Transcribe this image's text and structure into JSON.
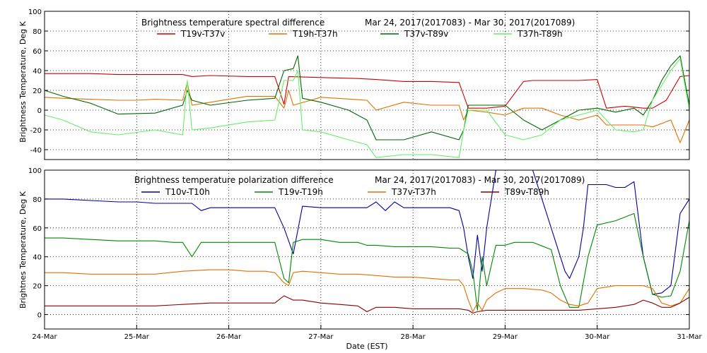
{
  "chart_data": [
    {
      "type": "line",
      "title": "Brightness temperature spectral difference",
      "date_range": "Mar 24, 2017(2017083) - Mar 30, 2017(2017089)",
      "ylabel": "Brightness Temperature, Deg K",
      "xlim": [
        0,
        7
      ],
      "ylim": [
        -50,
        100
      ],
      "yticks": [
        -40,
        -20,
        0,
        20,
        40,
        60,
        80,
        100
      ],
      "grid": true,
      "legend_position": "top",
      "series": [
        {
          "name": "T19v-T37v",
          "color": "#cc0000",
          "x": [
            0,
            0.2,
            0.5,
            0.8,
            1.2,
            1.5,
            1.6,
            1.8,
            2.2,
            2.5,
            2.6,
            2.65,
            3.0,
            3.4,
            3.6,
            3.9,
            4.2,
            4.5,
            4.55,
            4.6,
            4.8,
            5.0,
            5.2,
            5.3,
            5.35,
            5.6,
            5.8,
            6.0,
            6.1,
            6.3,
            6.5,
            6.6,
            6.75,
            6.9,
            7.0
          ],
          "y": [
            37,
            37,
            37,
            36,
            36,
            36,
            34,
            35,
            34,
            34,
            6,
            34,
            33,
            32,
            31,
            29,
            29,
            28,
            15,
            2,
            2,
            4,
            29,
            30,
            30,
            30,
            30,
            31,
            2,
            4,
            2,
            2,
            10,
            34,
            35
          ]
        },
        {
          "name": "T19h-T37h",
          "color": "#e07000",
          "x": [
            0,
            0.2,
            0.5,
            0.8,
            1.0,
            1.2,
            1.5,
            1.55,
            1.6,
            1.8,
            2.2,
            2.5,
            2.6,
            2.65,
            2.7,
            3.0,
            3.5,
            3.6,
            3.9,
            4.2,
            4.5,
            4.55,
            4.6,
            4.8,
            5.0,
            5.2,
            5.4,
            5.6,
            5.8,
            6.0,
            6.1,
            6.4,
            6.5,
            6.6,
            6.8,
            6.9,
            7.0
          ],
          "y": [
            13,
            12,
            11,
            10,
            10,
            11,
            10,
            28,
            5,
            8,
            14,
            14,
            2,
            20,
            5,
            13,
            10,
            0,
            8,
            5,
            5,
            -10,
            0,
            -2,
            -5,
            2,
            2,
            -5,
            -10,
            -5,
            -15,
            -15,
            -15,
            -17,
            -10,
            -33,
            -10
          ]
        },
        {
          "name": "T37v-T89v",
          "color": "#006600",
          "x": [
            0,
            0.2,
            0.5,
            0.8,
            1.2,
            1.5,
            1.55,
            1.6,
            1.8,
            2.2,
            2.5,
            2.6,
            2.7,
            2.75,
            2.8,
            3.0,
            3.3,
            3.5,
            3.6,
            3.9,
            4.2,
            4.5,
            4.55,
            4.6,
            4.8,
            5.0,
            5.2,
            5.4,
            5.6,
            5.8,
            6.0,
            6.2,
            6.4,
            6.5,
            6.6,
            6.7,
            6.8,
            6.9,
            7.0
          ],
          "y": [
            20,
            14,
            7,
            -4,
            -3,
            5,
            20,
            10,
            5,
            10,
            12,
            40,
            42,
            55,
            12,
            8,
            0,
            -10,
            -30,
            -30,
            -22,
            -30,
            -20,
            5,
            5,
            5,
            -10,
            -20,
            -10,
            0,
            2,
            -2,
            2,
            -5,
            10,
            30,
            45,
            55,
            5
          ]
        },
        {
          "name": "T37h-T89h",
          "color": "#66ee66",
          "x": [
            0,
            0.2,
            0.5,
            0.8,
            1.2,
            1.5,
            1.55,
            1.6,
            1.8,
            2.2,
            2.5,
            2.6,
            2.7,
            2.75,
            2.8,
            3.0,
            3.3,
            3.5,
            3.6,
            3.9,
            4.2,
            4.5,
            4.55,
            4.6,
            4.8,
            5.0,
            5.2,
            5.4,
            5.6,
            5.8,
            6.0,
            6.2,
            6.4,
            6.5,
            6.6,
            6.7,
            6.8,
            6.9,
            7.0
          ],
          "y": [
            -5,
            -10,
            -22,
            -25,
            -20,
            -25,
            30,
            -20,
            -18,
            -12,
            -10,
            30,
            30,
            40,
            -20,
            -22,
            -30,
            -35,
            -48,
            -45,
            -45,
            -48,
            -20,
            0,
            0,
            -25,
            -30,
            -25,
            -10,
            -5,
            0,
            -20,
            -22,
            -20,
            10,
            25,
            40,
            52,
            0
          ]
        }
      ]
    },
    {
      "type": "line",
      "title": "Brightness temperature polarization difference",
      "date_range": "Mar 24, 2017(2017083) - Mar 30, 2017(2017089)",
      "ylabel": "Brightnes Temperature, Deg K",
      "xlabel": "Date (EST)",
      "xlim": [
        0,
        7
      ],
      "ylim": [
        -10,
        100
      ],
      "yticks": [
        0,
        20,
        40,
        60,
        80,
        100
      ],
      "xtick_labels": [
        "24-Mar",
        "25-Mar",
        "26-Mar",
        "27-Mar",
        "28-Mar",
        "29-Mar",
        "30-Mar",
        "31-Mar"
      ],
      "grid": true,
      "legend_position": "top",
      "series": [
        {
          "name": "T10v-T10h",
          "color": "#000099",
          "x": [
            0,
            0.2,
            0.5,
            0.8,
            1.0,
            1.2,
            1.4,
            1.6,
            1.7,
            1.8,
            2.0,
            2.2,
            2.4,
            2.5,
            2.6,
            2.7,
            2.8,
            3.0,
            3.2,
            3.4,
            3.5,
            3.6,
            3.7,
            3.8,
            3.9,
            4.0,
            4.2,
            4.4,
            4.5,
            4.55,
            4.6,
            4.65,
            4.7,
            4.75,
            4.8,
            4.9,
            5.0,
            5.05,
            5.1,
            5.2,
            5.3,
            5.5,
            5.6,
            5.65,
            5.7,
            5.8,
            5.85,
            5.9,
            6.0,
            6.1,
            6.2,
            6.3,
            6.4,
            6.5,
            6.6,
            6.7,
            6.8,
            6.9,
            7.0
          ],
          "y": [
            80,
            80,
            79,
            78,
            78,
            77,
            77,
            77,
            72,
            74,
            74,
            74,
            74,
            74,
            60,
            42,
            75,
            74,
            74,
            74,
            74,
            78,
            72,
            78,
            74,
            74,
            74,
            74,
            72,
            60,
            40,
            25,
            55,
            30,
            60,
            100,
            100,
            100,
            100,
            100,
            100,
            60,
            40,
            30,
            25,
            40,
            60,
            90,
            90,
            90,
            88,
            88,
            92,
            40,
            14,
            15,
            20,
            70,
            80
          ]
        },
        {
          "name": "T19v-T19h",
          "color": "#008800",
          "x": [
            0,
            0.2,
            0.5,
            0.8,
            1.0,
            1.2,
            1.4,
            1.5,
            1.6,
            1.7,
            1.8,
            2.0,
            2.2,
            2.4,
            2.5,
            2.6,
            2.65,
            2.7,
            2.8,
            3.0,
            3.2,
            3.4,
            3.5,
            3.6,
            3.8,
            4.0,
            4.2,
            4.4,
            4.5,
            4.6,
            4.65,
            4.7,
            4.75,
            4.8,
            4.9,
            5.0,
            5.1,
            5.3,
            5.5,
            5.6,
            5.7,
            5.8,
            5.9,
            6.0,
            6.2,
            6.4,
            6.5,
            6.6,
            6.7,
            6.8,
            6.9,
            7.0
          ],
          "y": [
            53,
            53,
            52,
            51,
            51,
            51,
            50,
            50,
            40,
            50,
            50,
            50,
            50,
            50,
            50,
            25,
            22,
            50,
            52,
            52,
            50,
            50,
            48,
            48,
            47,
            47,
            47,
            46,
            46,
            42,
            30,
            3,
            40,
            20,
            48,
            48,
            50,
            50,
            45,
            20,
            5,
            5,
            40,
            62,
            65,
            70,
            40,
            14,
            12,
            13,
            30,
            65
          ]
        },
        {
          "name": "T37v-T37h",
          "color": "#e07000",
          "x": [
            0,
            0.2,
            0.5,
            0.8,
            1.0,
            1.2,
            1.5,
            1.8,
            2.0,
            2.2,
            2.4,
            2.5,
            2.6,
            2.65,
            2.7,
            2.8,
            3.0,
            3.2,
            3.4,
            3.6,
            3.8,
            4.0,
            4.2,
            4.4,
            4.5,
            4.55,
            4.6,
            4.65,
            4.7,
            4.75,
            4.8,
            4.9,
            5.0,
            5.2,
            5.4,
            5.5,
            5.6,
            5.7,
            5.8,
            5.9,
            6.0,
            6.2,
            6.4,
            6.5,
            6.6,
            6.7,
            6.8,
            6.9,
            7.0
          ],
          "y": [
            29,
            29,
            28,
            28,
            28,
            28,
            30,
            31,
            31,
            30,
            30,
            29,
            22,
            20,
            29,
            30,
            29,
            28,
            28,
            27,
            26,
            26,
            25,
            24,
            24,
            20,
            10,
            2,
            8,
            3,
            10,
            15,
            18,
            18,
            17,
            15,
            10,
            7,
            6,
            8,
            18,
            20,
            20,
            20,
            18,
            8,
            6,
            8,
            18
          ]
        },
        {
          "name": "T89v-T89h",
          "color": "#880000",
          "x": [
            0,
            0.2,
            0.5,
            0.8,
            1.0,
            1.2,
            1.5,
            1.8,
            2.0,
            2.2,
            2.4,
            2.5,
            2.6,
            2.7,
            2.8,
            3.0,
            3.2,
            3.4,
            3.5,
            3.6,
            3.8,
            4.0,
            4.2,
            4.4,
            4.5,
            4.6,
            4.65,
            4.7,
            4.8,
            5.0,
            5.2,
            5.4,
            5.6,
            5.8,
            6.0,
            6.2,
            6.4,
            6.5,
            6.6,
            6.7,
            6.8,
            6.9,
            7.0
          ],
          "y": [
            6,
            6,
            6,
            6,
            6,
            6,
            7,
            8,
            8,
            8,
            8,
            8,
            13,
            10,
            10,
            8,
            7,
            6,
            2,
            5,
            5,
            4,
            4,
            4,
            4,
            3,
            1,
            2,
            3,
            3,
            3,
            3,
            3,
            3,
            4,
            5,
            7,
            10,
            8,
            5,
            5,
            8,
            12
          ]
        }
      ]
    }
  ]
}
